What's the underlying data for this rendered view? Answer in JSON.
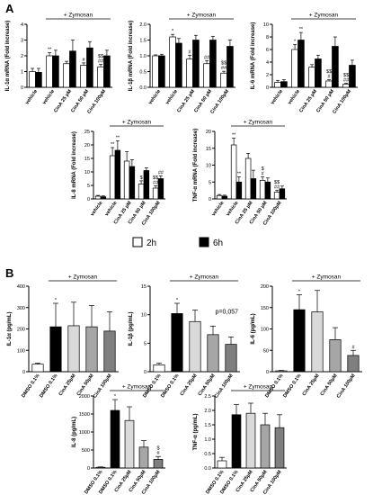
{
  "panels": {
    "A": "A",
    "B": "B"
  },
  "legend": {
    "label_2h": "2h",
    "label_6h": "6h",
    "color_2h": "#ffffff",
    "color_6h": "#000000"
  },
  "chart_data": [
    {
      "id": "a1",
      "panel": "A",
      "type": "bar",
      "ylabel": "IL-1α mRNA (Fold increase)",
      "yticks": [
        "0",
        "1",
        "2",
        "3",
        "4"
      ],
      "ylim": [
        0,
        4
      ],
      "group_label": "+ Zymosan",
      "categories": [
        "vehicle",
        "vehicle",
        "CinA 25 µM",
        "CinA 50 µM",
        "CinA 100µM"
      ],
      "series": [
        {
          "name": "2h",
          "values": [
            1.0,
            2.0,
            1.5,
            1.4,
            1.3
          ],
          "errors": [
            0.2,
            0.2,
            0.15,
            0.15,
            0.15
          ]
        },
        {
          "name": "6h",
          "values": [
            0.95,
            2.0,
            2.3,
            2.5,
            2.0
          ],
          "errors": [
            0.25,
            0.35,
            0.7,
            0.4,
            0.35
          ]
        }
      ],
      "annotations": [
        {
          "cat": 1,
          "series": 0,
          "text": "**"
        },
        {
          "cat": 3,
          "series": 0,
          "text": "#"
        },
        {
          "cat": 4,
          "series": 0,
          "text": "$$\n##"
        }
      ]
    },
    {
      "id": "a2",
      "panel": "A",
      "type": "bar",
      "ylabel": "IL-1β mRNA (Fold increase)",
      "yticks": [
        "0.0",
        "0.5",
        "1.0",
        "1.5",
        "2.0"
      ],
      "ylim": [
        0,
        2
      ],
      "group_label": "+ Zymosan",
      "categories": [
        "vehicle",
        "vehicle",
        "CinA 25 µM",
        "CinA 50 µM",
        "CinA 100µM"
      ],
      "series": [
        {
          "name": "2h",
          "values": [
            1.0,
            1.6,
            0.9,
            0.75,
            0.45
          ],
          "errors": [
            0.03,
            0.08,
            0.12,
            0.1,
            0.06
          ]
        },
        {
          "name": "6h",
          "values": [
            1.0,
            1.4,
            1.5,
            1.5,
            1.3
          ],
          "errors": [
            0.05,
            0.15,
            0.15,
            0.12,
            0.2
          ]
        }
      ],
      "annotations": [
        {
          "cat": 1,
          "series": 0,
          "text": "*"
        },
        {
          "cat": 2,
          "series": 0,
          "text": "#"
        },
        {
          "cat": 3,
          "series": 0,
          "text": "##"
        },
        {
          "cat": 4,
          "series": 0,
          "text": "$$\n##"
        }
      ]
    },
    {
      "id": "a3",
      "panel": "A",
      "type": "bar",
      "ylabel": "IL-6 mRNA (Fold increase)",
      "yticks": [
        "0",
        "2",
        "4",
        "6",
        "8",
        "10"
      ],
      "ylim": [
        0,
        10
      ],
      "group_label": "+ Zymosan",
      "categories": [
        "vehicle",
        "vehicle",
        "CinA 25 µM",
        "CinA 50 µM",
        "CinA 100µM"
      ],
      "series": [
        {
          "name": "2h",
          "values": [
            0.8,
            6.0,
            3.2,
            1.0,
            0.5
          ],
          "errors": [
            0.3,
            0.8,
            0.4,
            0.2,
            0.15
          ]
        },
        {
          "name": "6h",
          "values": [
            0.9,
            7.5,
            4.5,
            6.5,
            3.5
          ],
          "errors": [
            0.3,
            1.2,
            0.6,
            1.5,
            0.8
          ]
        }
      ],
      "annotations": [
        {
          "cat": 1,
          "series": 0,
          "text": "*"
        },
        {
          "cat": 1,
          "series": 1,
          "text": "**"
        },
        {
          "cat": 3,
          "series": 0,
          "text": "$$\n#"
        },
        {
          "cat": 4,
          "series": 0,
          "text": "$$\n##"
        }
      ]
    },
    {
      "id": "a4",
      "panel": "A",
      "type": "bar",
      "ylabel": "IL-8 mRNA (Fold increase)",
      "yticks": [
        "0",
        "5",
        "10",
        "15",
        "20",
        "25"
      ],
      "ylim": [
        0,
        25
      ],
      "group_label": "+ Zymosan",
      "categories": [
        "vehicle",
        "vehicle",
        "CinA 25 µM",
        "CinA 50 µM",
        "CinA 100µM"
      ],
      "series": [
        {
          "name": "2h",
          "values": [
            1.0,
            16.0,
            14.0,
            5.5,
            4.0
          ],
          "errors": [
            0.3,
            3.0,
            3.5,
            1.2,
            0.8
          ]
        },
        {
          "name": "6h",
          "values": [
            0.8,
            18.0,
            12.0,
            10.5,
            7.5
          ],
          "errors": [
            0.3,
            3.5,
            2.5,
            1.0,
            1.0
          ]
        }
      ],
      "annotations": [
        {
          "cat": 1,
          "series": 0,
          "text": "**"
        },
        {
          "cat": 1,
          "series": 1,
          "text": "**"
        },
        {
          "cat": 3,
          "series": 0,
          "text": "$"
        },
        {
          "cat": 4,
          "series": 0,
          "text": "$$\n##"
        },
        {
          "cat": 4,
          "series": 1,
          "text": "##"
        }
      ]
    },
    {
      "id": "a5",
      "panel": "A",
      "type": "bar",
      "ylabel": "TNF-α mRNA (Fold increase)",
      "yticks": [
        "0",
        "5",
        "10",
        "15",
        "20"
      ],
      "ylim": [
        0,
        20
      ],
      "group_label": "+ Zymosan",
      "categories": [
        "vehicle",
        "vehicle",
        "CinA 25 µM",
        "CinA 50 µM",
        "CinA 100µM"
      ],
      "series": [
        {
          "name": "2h",
          "values": [
            1.0,
            16.0,
            12.0,
            5.5,
            2.0
          ],
          "errors": [
            0.3,
            2.0,
            1.5,
            1.0,
            0.6
          ]
        },
        {
          "name": "6h",
          "values": [
            0.8,
            5.0,
            6.0,
            5.0,
            3.0
          ],
          "errors": [
            0.3,
            1.5,
            2.5,
            1.2,
            0.8
          ]
        }
      ],
      "annotations": [
        {
          "cat": 1,
          "series": 0,
          "text": "**"
        },
        {
          "cat": 1,
          "series": 1,
          "text": "**"
        },
        {
          "cat": 3,
          "series": 0,
          "text": "$\n#"
        },
        {
          "cat": 4,
          "series": 0,
          "text": "$$\n##"
        }
      ]
    },
    {
      "id": "b1",
      "panel": "B",
      "type": "bar",
      "ylabel": "IL-1α (pg/mL)",
      "yticks": [
        "0",
        "100",
        "200",
        "300",
        "400"
      ],
      "ylim": [
        0,
        400
      ],
      "group_label": "+ Zymosan",
      "categories": [
        "DMSO 0.1%",
        "DMSO 0.1%",
        "CinA 25µM",
        "CinA 50µM",
        "CinA 100µM"
      ],
      "colors": [
        "#ffffff",
        "#000000",
        "#d9d9d9",
        "#a6a6a6",
        "#7f7f7f"
      ],
      "values": [
        35,
        210,
        215,
        210,
        190
      ],
      "errors": [
        5,
        110,
        110,
        100,
        90
      ],
      "annotations": [
        {
          "cat": 1,
          "text": "*"
        }
      ]
    },
    {
      "id": "b2",
      "panel": "B",
      "type": "bar",
      "ylabel": "IL-1β (pg/mL)",
      "yticks": [
        "0",
        "5",
        "10",
        "15"
      ],
      "ylim": [
        0,
        15
      ],
      "group_label": "+ Zymosan",
      "categories": [
        "DMSO 0.1%",
        "DMSO 0.1%",
        "CinA 25µM",
        "CinA 50µM",
        "CinA 100µM"
      ],
      "colors": [
        "#ffffff",
        "#000000",
        "#d9d9d9",
        "#a6a6a6",
        "#7f7f7f"
      ],
      "values": [
        1.2,
        10.2,
        8.8,
        6.5,
        4.8
      ],
      "errors": [
        0.3,
        1.8,
        2.0,
        1.5,
        1.3
      ],
      "annotations": [
        {
          "cat": 1,
          "text": "*"
        }
      ],
      "note": "p=0,057"
    },
    {
      "id": "b3",
      "panel": "B",
      "type": "bar",
      "ylabel": "IL-6 (pg/mL)",
      "yticks": [
        "0",
        "50",
        "100",
        "150",
        "200"
      ],
      "ylim": [
        0,
        200
      ],
      "group_label": "+ Zymosan",
      "categories": [
        "DMSO 0.1%",
        "DMSO 0.1%",
        "CinA 25µM",
        "CinA 50µM",
        "CinA 100µM"
      ],
      "colors": [
        "#ffffff",
        "#000000",
        "#d9d9d9",
        "#a6a6a6",
        "#7f7f7f"
      ],
      "values": [
        2,
        145,
        140,
        75,
        38
      ],
      "errors": [
        1,
        35,
        50,
        28,
        12
      ],
      "annotations": [
        {
          "cat": 1,
          "text": "*"
        },
        {
          "cat": 4,
          "text": "#"
        }
      ]
    },
    {
      "id": "b4",
      "panel": "B",
      "type": "bar",
      "ylabel": "IL-8 (pg/mL)",
      "yticks": [
        "0",
        "500",
        "1000",
        "1500",
        "2000"
      ],
      "ylim": [
        0,
        2000
      ],
      "group_label": "+ Zymosan",
      "categories": [
        "DMSO 0.1%",
        "DMSO 0.1%",
        "CinA 25µM",
        "CinA 50µM",
        "CinA 100µM"
      ],
      "colors": [
        "#ffffff",
        "#000000",
        "#d9d9d9",
        "#a6a6a6",
        "#7f7f7f"
      ],
      "values": [
        20,
        1600,
        1320,
        580,
        240
      ],
      "errors": [
        10,
        300,
        380,
        180,
        80
      ],
      "annotations": [
        {
          "cat": 1,
          "text": "*"
        },
        {
          "cat": 4,
          "text": "$\n#"
        }
      ]
    },
    {
      "id": "b5",
      "panel": "B",
      "type": "bar",
      "ylabel": "TNF-α (pg/mL)",
      "yticks": [
        "0.0",
        "0.5",
        "1.0",
        "1.5",
        "2.0",
        "2.5"
      ],
      "ylim": [
        0,
        2.5
      ],
      "group_label": "+ Zymosan",
      "categories": [
        "DMSO 0.1%",
        "DMSO 0.1%",
        "CinA 25µM",
        "CinA 50µM",
        "CinA 100µM"
      ],
      "colors": [
        "#ffffff",
        "#000000",
        "#d9d9d9",
        "#a6a6a6",
        "#7f7f7f"
      ],
      "values": [
        0.25,
        1.85,
        1.9,
        1.5,
        1.4
      ],
      "errors": [
        0.12,
        0.35,
        0.35,
        0.4,
        0.45
      ],
      "annotations": []
    }
  ]
}
